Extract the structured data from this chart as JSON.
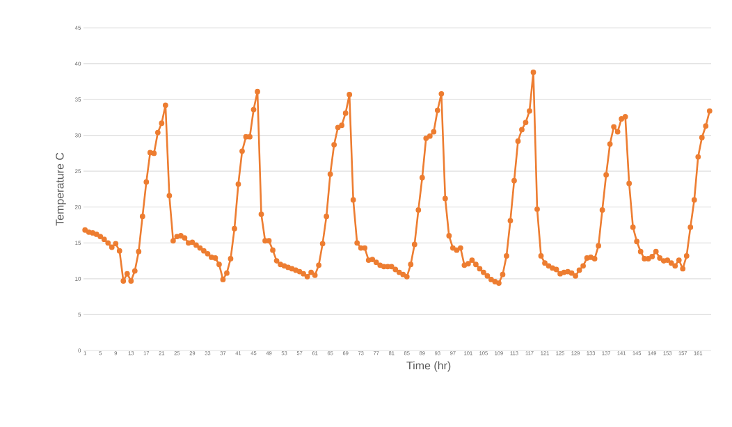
{
  "chart_data": {
    "type": "line",
    "xlabel": "Time (hr)",
    "ylabel": "Temperature C",
    "categories": [
      "1",
      null,
      null,
      null,
      "5",
      null,
      null,
      null,
      "9",
      null,
      null,
      null,
      "13",
      null,
      null,
      null,
      "17",
      null,
      null,
      null,
      "21",
      null,
      null,
      null,
      "25",
      null,
      null,
      null,
      "29",
      null,
      null,
      null,
      "33",
      null,
      null,
      null,
      "37",
      null,
      null,
      null,
      "41",
      null,
      null,
      null,
      "45",
      null,
      null,
      null,
      "49",
      null,
      null,
      null,
      "53",
      null,
      null,
      null,
      "57",
      null,
      null,
      null,
      "61",
      null,
      null,
      null,
      "65",
      null,
      null,
      null,
      "69",
      null,
      null,
      null,
      "73",
      null,
      null,
      null,
      "77",
      null,
      null,
      null,
      "81",
      null,
      null,
      null,
      "85",
      null,
      null,
      null,
      "89",
      null,
      null,
      null,
      "93",
      null,
      null,
      null,
      "97",
      null,
      null,
      null,
      "101",
      null,
      null,
      null,
      "105",
      null,
      null,
      null,
      "109",
      null,
      null,
      null,
      "113",
      null,
      null,
      null,
      "117",
      null,
      null,
      null,
      "121",
      null,
      null,
      null,
      "125",
      null,
      null,
      null,
      "129",
      null,
      null,
      null,
      "133",
      null,
      null,
      null,
      "137",
      null,
      null,
      null,
      "141",
      null,
      null,
      null,
      "145",
      null,
      null,
      null,
      "149",
      null,
      null,
      null,
      "153",
      null,
      null,
      null,
      "157",
      null,
      null,
      null,
      "161",
      null,
      null,
      null
    ],
    "series": [
      {
        "color": "#ed7d31",
        "values": [
          16.8,
          16.5,
          16.4,
          16.2,
          15.9,
          15.5,
          15.0,
          14.4,
          14.9,
          13.9,
          9.7,
          10.7,
          9.7,
          11.1,
          13.8,
          18.7,
          23.5,
          27.6,
          27.5,
          30.4,
          31.7,
          34.2,
          21.6,
          15.3,
          15.9,
          16.0,
          15.7,
          15.0,
          15.1,
          14.7,
          14.3,
          13.9,
          13.5,
          13.0,
          12.9,
          12.0,
          9.9,
          10.8,
          12.8,
          17.0,
          23.2,
          27.8,
          29.8,
          29.8,
          33.6,
          36.1,
          19.0,
          15.3,
          15.3,
          14.0,
          12.5,
          12.0,
          11.8,
          11.6,
          11.4,
          11.2,
          11.0,
          10.7,
          10.3,
          10.9,
          10.5,
          11.9,
          14.9,
          18.7,
          24.6,
          28.7,
          31.1,
          31.4,
          33.1,
          35.7,
          21.0,
          15.0,
          14.3,
          14.3,
          12.6,
          12.7,
          12.3,
          11.9,
          11.7,
          11.7,
          11.7,
          11.3,
          10.9,
          10.6,
          10.3,
          12.0,
          14.8,
          19.6,
          24.1,
          29.6,
          29.9,
          30.5,
          33.5,
          35.8,
          21.2,
          16.0,
          14.3,
          14.0,
          14.3,
          11.9,
          12.1,
          12.6,
          12.0,
          11.4,
          10.9,
          10.4,
          9.9,
          9.6,
          9.4,
          10.6,
          13.2,
          18.1,
          23.7,
          29.2,
          30.8,
          31.8,
          33.4,
          38.8,
          19.7,
          13.2,
          12.2,
          11.8,
          11.5,
          11.3,
          10.7,
          10.9,
          11.0,
          10.8,
          10.4,
          11.2,
          11.8,
          12.9,
          13.0,
          12.8,
          14.6,
          19.6,
          24.5,
          28.8,
          31.2,
          30.5,
          32.3,
          32.6,
          23.3,
          17.2,
          15.2,
          13.8,
          12.8,
          12.8,
          13.1,
          13.8,
          12.9,
          12.5,
          12.6,
          12.2,
          11.8,
          12.6,
          11.4,
          13.2,
          17.2,
          21.0,
          27.0,
          29.7,
          31.3,
          33.4
        ]
      }
    ],
    "ylim": [
      0,
      45
    ],
    "yticks": [
      0,
      5,
      10,
      15,
      20,
      25,
      30,
      35,
      40,
      45
    ],
    "grid": "y",
    "marker": "circle",
    "line_style": "solid"
  }
}
